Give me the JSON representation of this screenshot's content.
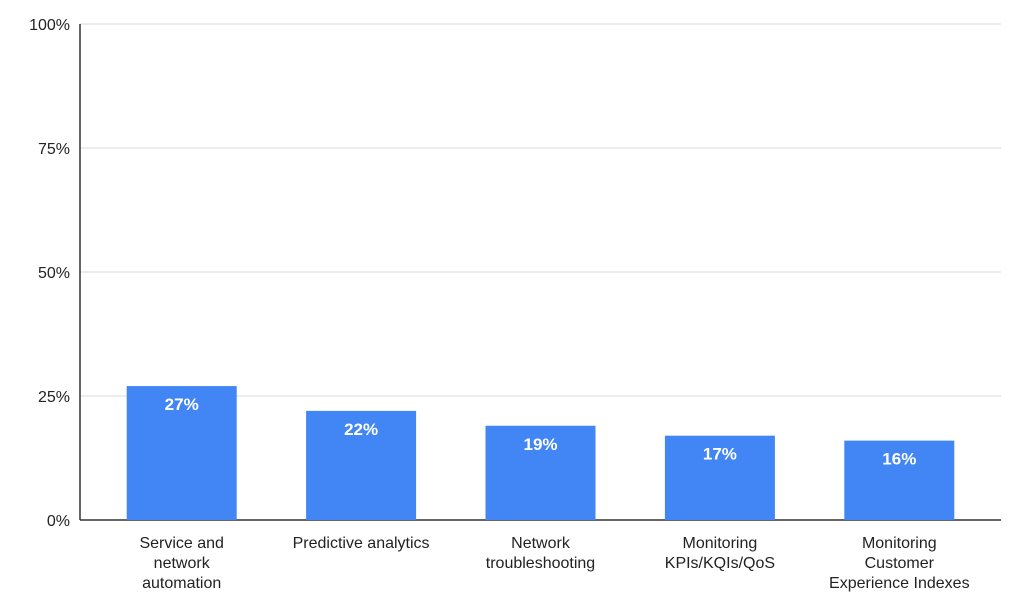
{
  "chart_data": {
    "type": "bar",
    "categories": [
      [
        "Service and",
        "network",
        "automation"
      ],
      [
        "Predictive analytics"
      ],
      [
        "Network",
        "troubleshooting"
      ],
      [
        "Monitoring",
        "KPIs/KQIs/QoS"
      ],
      [
        "Monitoring",
        "Customer",
        "Experience Indexes"
      ]
    ],
    "values": [
      27,
      22,
      19,
      17,
      16
    ],
    "data_labels": [
      "27%",
      "22%",
      "19%",
      "17%",
      "16%"
    ],
    "ylim": [
      0,
      100
    ],
    "yticks": [
      0,
      25,
      50,
      75,
      100
    ],
    "ytick_labels": [
      "0%",
      "25%",
      "50%",
      "75%",
      "100%"
    ],
    "title": "",
    "xlabel": "",
    "ylabel": "",
    "grid": true,
    "legend": "none",
    "colors": {
      "bar": "#4285f4",
      "grid": "#d9d9d9",
      "axis": "#333333"
    }
  }
}
